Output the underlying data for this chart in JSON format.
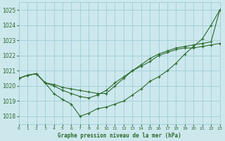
{
  "title": "Graphe pression niveau de la mer (hPa)",
  "bg_color": "#cce8ed",
  "grid_color": "#9ecdd6",
  "line_color": "#2d6a2d",
  "x_min": 0,
  "x_max": 23,
  "y_min": 1017.5,
  "y_max": 1025.5,
  "y_ticks": [
    1018,
    1019,
    1020,
    1021,
    1022,
    1023,
    1024,
    1025
  ],
  "x_ticks": [
    0,
    1,
    2,
    3,
    4,
    5,
    6,
    7,
    8,
    9,
    10,
    11,
    12,
    13,
    14,
    15,
    16,
    17,
    18,
    19,
    20,
    21,
    22,
    23
  ],
  "line1_y": [
    1020.5,
    1020.7,
    1020.8,
    1020.2,
    1019.5,
    1019.1,
    1018.8,
    1018.0,
    1018.2,
    1018.5,
    1018.6,
    1018.8,
    1019.0,
    1019.4,
    1019.8,
    1020.3,
    1020.6,
    1021.0,
    1021.5,
    1022.1,
    1022.6,
    1023.1,
    1024.0,
    1025.0
  ],
  "line2_y": [
    1020.5,
    1020.7,
    1020.8,
    1020.2,
    1020.0,
    1019.7,
    1019.5,
    1019.3,
    1019.2,
    1019.4,
    1019.7,
    1020.2,
    1020.6,
    1021.0,
    1021.3,
    1021.6,
    1022.0,
    1022.2,
    1022.4,
    1022.5,
    1022.5,
    1022.6,
    1022.7,
    1022.8
  ],
  "line3_y": [
    1020.5,
    1020.7,
    1020.8,
    1020.2,
    1020.1,
    1019.9,
    1019.8,
    1019.7,
    1019.6,
    1019.5,
    1019.5,
    1020.0,
    1020.5,
    1021.0,
    1021.4,
    1021.8,
    1022.1,
    1022.3,
    1022.5,
    1022.6,
    1022.7,
    1022.8,
    1022.9,
    1025.0
  ]
}
